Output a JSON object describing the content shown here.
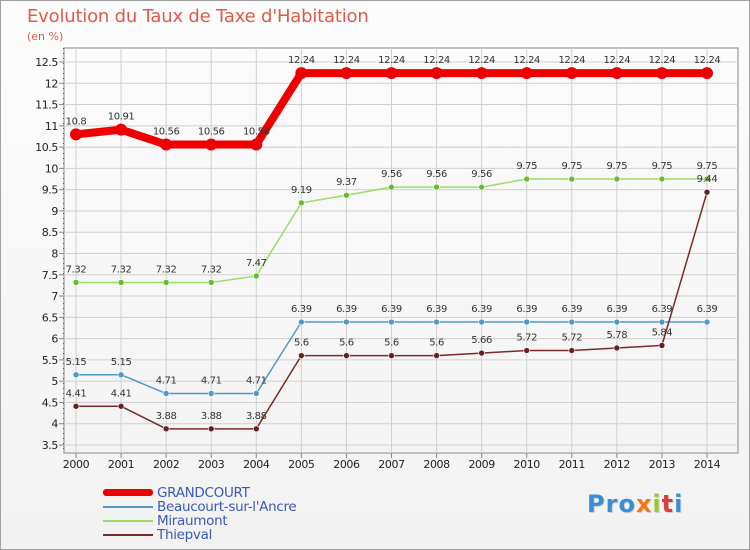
{
  "title": "Evolution du Taux de Taxe d'Habitation",
  "subtitle": "(en %)",
  "logo": {
    "text": "Proxiti",
    "letters": [
      "P",
      "r",
      "o",
      "x",
      "i",
      "t",
      "i"
    ],
    "colors": [
      "#3a8ed6",
      "#3a8ed6",
      "#3a8ed6",
      "#f07a1a",
      "#9ac836",
      "#e23a3a",
      "#3a8ed6"
    ]
  },
  "chart_data": {
    "type": "line",
    "title": "Evolution du Taux de Taxe d'Habitation",
    "ylabel": "(en %)",
    "ylim": [
      3.5,
      12.5
    ],
    "yticks": [
      "3.5",
      "4",
      "4.5",
      "5",
      "5.5",
      "6",
      "6.5",
      "7",
      "7.5",
      "8",
      "8.5",
      "9",
      "9.5",
      "10",
      "10.5",
      "11",
      "11.5",
      "12",
      "12.5"
    ],
    "x": [
      "2000",
      "2001",
      "2002",
      "2003",
      "2004",
      "2005",
      "2006",
      "2007",
      "2008",
      "2009",
      "2010",
      "2011",
      "2012",
      "2013",
      "2014"
    ],
    "grid": true,
    "series": [
      {
        "name": "GRANDCOURT",
        "color": "#ee0000",
        "thick": true,
        "values": [
          10.8,
          10.91,
          10.56,
          10.56,
          10.56,
          12.24,
          12.24,
          12.24,
          12.24,
          12.24,
          12.24,
          12.24,
          12.24,
          12.24,
          12.24
        ],
        "labels": [
          "10.8",
          "10.91",
          "10.56",
          "10.56",
          "10.56",
          "12.24",
          "12.24",
          "12.24",
          "12.24",
          "12.24",
          "12.24",
          "12.24",
          "12.24",
          "12.24",
          "12.24"
        ]
      },
      {
        "name": "Beaucourt-sur-l'Ancre",
        "color": "#4d9ac8",
        "marker": "#4d9ac8",
        "values": [
          5.15,
          5.15,
          4.71,
          4.71,
          4.71,
          6.39,
          6.39,
          6.39,
          6.39,
          6.39,
          6.39,
          6.39,
          6.39,
          6.39,
          6.39
        ],
        "labels": [
          "5.15",
          "5.15",
          "4.71",
          "4.71",
          "4.71",
          "6.39",
          "6.39",
          "6.39",
          "6.39",
          "6.39",
          "6.39",
          "6.39",
          "6.39",
          "6.39",
          "6.39"
        ]
      },
      {
        "name": "Miraumont",
        "color": "#99dd66",
        "marker": "#66bb33",
        "values": [
          7.32,
          7.32,
          7.32,
          7.32,
          7.47,
          9.19,
          9.37,
          9.56,
          9.56,
          9.56,
          9.75,
          9.75,
          9.75,
          9.75,
          9.75
        ],
        "labels": [
          "7.32",
          "7.32",
          "7.32",
          "7.32",
          "7.47",
          "9.19",
          "9.37",
          "9.56",
          "9.56",
          "9.56",
          "9.75",
          "9.75",
          "9.75",
          "9.75",
          "9.75"
        ]
      },
      {
        "name": "Thiepval",
        "color": "#7a2a2a",
        "marker": "#6a1f1f",
        "values": [
          4.41,
          4.41,
          3.88,
          3.88,
          3.88,
          5.6,
          5.6,
          5.6,
          5.6,
          5.66,
          5.72,
          5.72,
          5.78,
          5.84,
          9.44
        ],
        "labels": [
          "4.41",
          "4.41",
          "3.88",
          "3.88",
          "3.88",
          "5.6",
          "5.6",
          "5.6",
          "5.6",
          "5.66",
          "5.72",
          "5.72",
          "5.78",
          "5.84",
          "9.44"
        ]
      }
    ]
  }
}
